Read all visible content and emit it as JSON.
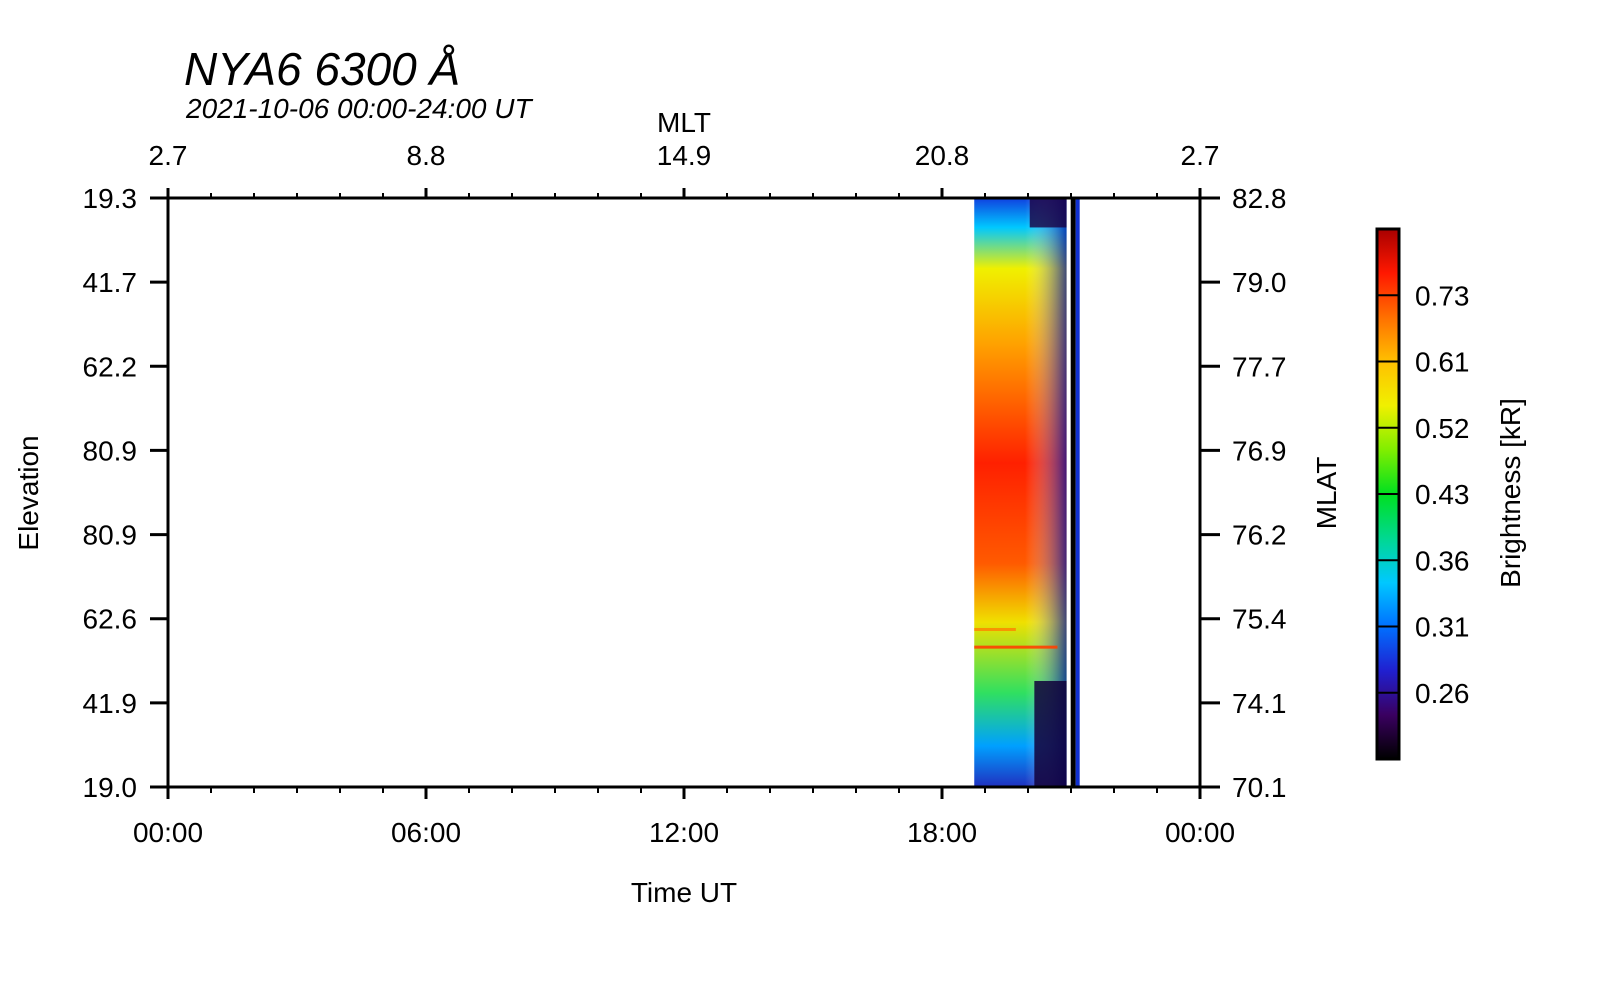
{
  "chart_data": {
    "type": "heatmap",
    "title": "NYA6 6300 Å",
    "subtitle": "2021-10-06 00:00-24:00 UT",
    "xlabel": "Time UT",
    "ylabel": "Elevation",
    "top_axis_label": "MLT",
    "right_axis_label": "MLAT",
    "colorbar_label": "Brightness [kR]",
    "x_ticks": [
      "00:00",
      "06:00",
      "12:00",
      "18:00",
      "00:00"
    ],
    "mlt_ticks": [
      "2.7",
      "8.8",
      "14.9",
      "20.8",
      "2.7"
    ],
    "elevation_ticks": [
      "19.3",
      "41.7",
      "62.2",
      "80.9",
      "80.9",
      "62.6",
      "41.9",
      "19.0"
    ],
    "mlat_ticks": [
      "82.8",
      "79.0",
      "77.7",
      "76.9",
      "76.2",
      "75.4",
      "74.1",
      "70.1"
    ],
    "colorbar_ticks": [
      "0.73",
      "0.61",
      "0.52",
      "0.43",
      "0.36",
      "0.31",
      "0.26"
    ],
    "x_range_hours": [
      0,
      24
    ],
    "data_coverage_hours": [
      18.75,
      20.9
    ],
    "colormap": [
      "#000000",
      "#3a0060",
      "#2020d0",
      "#0070ff",
      "#00c8ff",
      "#00d890",
      "#00e020",
      "#80ee00",
      "#f0f000",
      "#ffc000",
      "#ff7000",
      "#ff1800",
      "#a80000"
    ],
    "frame_color": "#000000"
  }
}
